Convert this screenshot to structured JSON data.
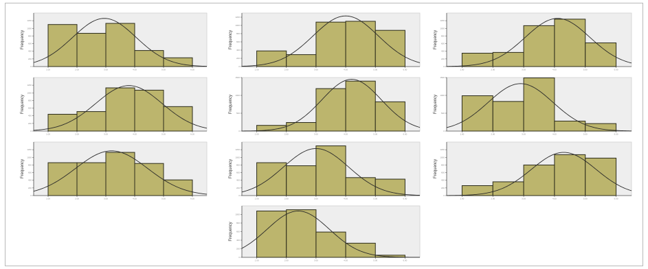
{
  "figure": {
    "watermark": "",
    "side_mark": ""
  },
  "chart_data": [
    {
      "type": "bar",
      "panel": "row1-left",
      "ylabel": "Frequency",
      "xlabel": "",
      "bin_edges": [
        1,
        2,
        3,
        4,
        5,
        6
      ],
      "x_range": [
        0.5,
        6.5
      ],
      "ylim": [
        0,
        1400
      ],
      "y_ticks": [
        0,
        200,
        400,
        600,
        800,
        1000,
        1200
      ],
      "values": [
        1100,
        870,
        1130,
        420,
        230
      ],
      "normal_curve": {
        "mean": 2.95,
        "sd": 1.1,
        "peak": 1260
      },
      "grid": false
    },
    {
      "type": "bar",
      "panel": "row1-middle",
      "ylabel": "Frequency",
      "xlabel": "",
      "bin_edges": [
        1,
        2,
        3,
        4,
        5,
        6
      ],
      "x_range": [
        0.5,
        6.5
      ],
      "ylim": [
        0,
        1300
      ],
      "y_ticks": [
        0,
        200,
        400,
        600,
        800,
        1000,
        1200
      ],
      "values": [
        380,
        290,
        1080,
        1100,
        880
      ],
      "normal_curve": {
        "mean": 4.0,
        "sd": 1.1,
        "peak": 1230
      },
      "grid": false
    },
    {
      "type": "bar",
      "panel": "row1-right",
      "ylabel": "Frequency",
      "xlabel": "",
      "bin_edges": [
        1,
        2,
        3,
        4,
        5,
        6
      ],
      "x_range": [
        0.5,
        6.5
      ],
      "ylim": [
        0,
        1400
      ],
      "y_ticks": [
        0,
        200,
        400,
        600,
        800,
        1000,
        1200
      ],
      "values": [
        350,
        370,
        1070,
        1240,
        620
      ],
      "normal_curve": {
        "mean": 4.1,
        "sd": 1.05,
        "peak": 1260
      },
      "grid": false
    },
    {
      "type": "bar",
      "panel": "row2-left",
      "ylabel": "Frequency",
      "xlabel": "",
      "bin_edges": [
        1,
        2,
        3,
        4,
        5,
        6
      ],
      "x_range": [
        0.5,
        6.5
      ],
      "ylim": [
        0,
        1400
      ],
      "y_ticks": [
        0,
        200,
        400,
        600,
        800,
        1000,
        1200
      ],
      "values": [
        440,
        510,
        1130,
        1070,
        640
      ],
      "normal_curve": {
        "mean": 3.8,
        "sd": 1.15,
        "peak": 1190
      },
      "grid": false
    },
    {
      "type": "bar",
      "panel": "row2-middle",
      "ylabel": "Frequency",
      "xlabel": "",
      "bin_edges": [
        1,
        2,
        3,
        4,
        5,
        6
      ],
      "x_range": [
        0.5,
        6.5
      ],
      "ylim": [
        0,
        1500
      ],
      "y_ticks": [
        0,
        500,
        1000,
        1500
      ],
      "values": [
        160,
        240,
        1190,
        1400,
        820
      ],
      "normal_curve": {
        "mean": 4.2,
        "sd": 1.0,
        "peak": 1450
      },
      "grid": false
    },
    {
      "type": "bar",
      "panel": "row2-right",
      "ylabel": "Frequency",
      "xlabel": "",
      "bin_edges": [
        1,
        2,
        3,
        4,
        5,
        6
      ],
      "x_range": [
        0.5,
        6.5
      ],
      "ylim": [
        0,
        1500
      ],
      "y_ticks": [
        0,
        500,
        1000,
        1500
      ],
      "values": [
        990,
        830,
        1490,
        280,
        210
      ],
      "normal_curve": {
        "mean": 2.9,
        "sd": 1.05,
        "peak": 1330
      },
      "grid": false
    },
    {
      "type": "bar",
      "panel": "row3-left",
      "ylabel": "Frequency",
      "xlabel": "",
      "bin_edges": [
        1,
        2,
        3,
        4,
        5,
        6
      ],
      "x_range": [
        0.5,
        6.5
      ],
      "ylim": [
        0,
        1400
      ],
      "y_ticks": [
        0,
        200,
        400,
        600,
        800,
        1000,
        1200
      ],
      "values": [
        860,
        860,
        1130,
        840,
        410
      ],
      "normal_curve": {
        "mean": 3.2,
        "sd": 1.25,
        "peak": 1170
      },
      "grid": false
    },
    {
      "type": "bar",
      "panel": "row3-middle",
      "ylabel": "Frequency",
      "xlabel": "",
      "bin_edges": [
        1,
        2,
        3,
        4,
        5,
        6
      ],
      "x_range": [
        0.5,
        6.5
      ],
      "ylim": [
        0,
        1400
      ],
      "y_ticks": [
        0,
        200,
        400,
        600,
        800,
        1000,
        1200
      ],
      "values": [
        860,
        780,
        1300,
        470,
        430
      ],
      "normal_curve": {
        "mean": 3.0,
        "sd": 1.1,
        "peak": 1230
      },
      "grid": false
    },
    {
      "type": "bar",
      "panel": "row3-right",
      "ylabel": "Frequency",
      "xlabel": "",
      "bin_edges": [
        1,
        2,
        3,
        4,
        5,
        6
      ],
      "x_range": [
        0.5,
        6.5
      ],
      "ylim": [
        0,
        1400
      ],
      "y_ticks": [
        0,
        200,
        400,
        600,
        800,
        1000,
        1200
      ],
      "values": [
        260,
        360,
        800,
        1070,
        980
      ],
      "normal_curve": {
        "mean": 4.3,
        "sd": 1.05,
        "peak": 1130
      },
      "grid": false
    },
    {
      "type": "bar",
      "panel": "row4-center",
      "ylabel": "Frequency",
      "xlabel": "",
      "bin_edges": [
        1,
        2,
        3,
        4,
        5,
        6
      ],
      "x_range": [
        0.5,
        6.5
      ],
      "ylim": [
        0,
        1200
      ],
      "y_ticks": [
        0,
        200,
        400,
        600,
        800,
        1000
      ],
      "values": [
        1080,
        1110,
        590,
        330,
        50
      ],
      "normal_curve": {
        "mean": 2.4,
        "sd": 1.05,
        "peak": 1080
      },
      "grid": false
    }
  ]
}
